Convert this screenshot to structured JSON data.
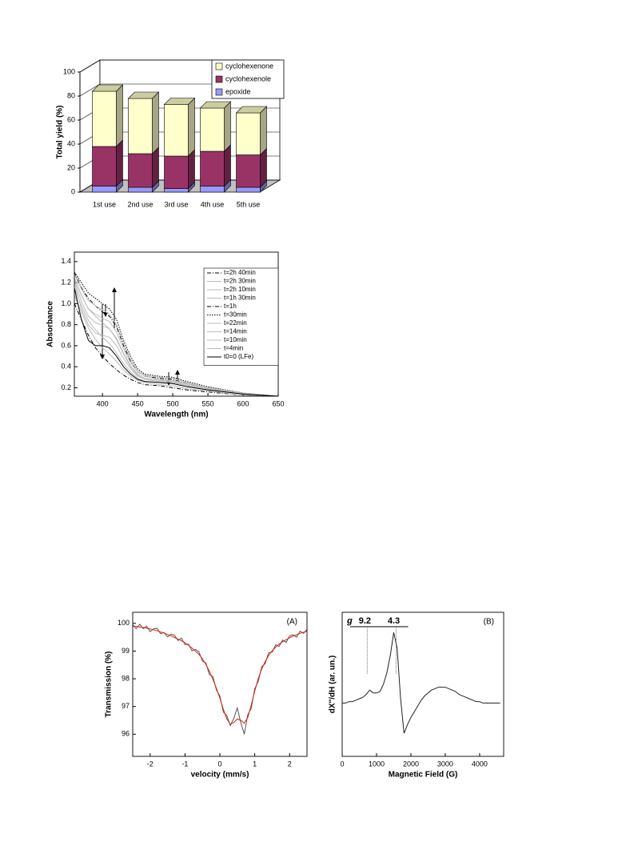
{
  "chart_data": [
    {
      "type": "bar",
      "stacked": true,
      "three_d": true,
      "y_label": "Total yield  (%)",
      "categories": [
        "1st use",
        "2nd use",
        "3rd use",
        "4th use",
        "5th use"
      ],
      "series": [
        {
          "name": "epoxide",
          "color": "#9999ff",
          "values": [
            5,
            4,
            3,
            5,
            4
          ]
        },
        {
          "name": "cyclohexenole",
          "color": "#993366",
          "values": [
            33,
            28,
            27,
            29,
            27
          ]
        },
        {
          "name": "cyclohexenone",
          "color": "#ffffcc",
          "values": [
            46,
            46,
            43,
            36,
            35
          ]
        }
      ],
      "ylim": [
        0,
        100
      ],
      "yticks": [
        0,
        20,
        40,
        60,
        80,
        100
      ],
      "grid": true,
      "legend": "upper right"
    },
    {
      "type": "line",
      "x_label": "Wavelength (nm)",
      "y_label": "Absorbance",
      "x": [
        360,
        370,
        380,
        390,
        400,
        410,
        420,
        430,
        440,
        450,
        460,
        480,
        500,
        520,
        550,
        600,
        650
      ],
      "series": [
        {
          "name": "t=2h 40min",
          "color": "#000000",
          "dash": "dashdot",
          "values": [
            1.0,
            0.85,
            0.7,
            0.58,
            0.5,
            0.43,
            0.37,
            0.32,
            0.28,
            0.25,
            0.23,
            0.22,
            0.2,
            0.18,
            0.16,
            0.13,
            0.11
          ]
        },
        {
          "name": "t=2h 30min",
          "color": "#bbbbbb",
          "dash": "solid",
          "values": [
            1.08,
            0.92,
            0.77,
            0.66,
            0.58,
            0.52,
            0.45,
            0.37,
            0.31,
            0.27,
            0.25,
            0.23,
            0.22,
            0.19,
            0.17,
            0.13,
            0.11
          ]
        },
        {
          "name": "t=2h 10min",
          "color": "#bbbbbb",
          "dash": "solid",
          "values": [
            1.15,
            0.98,
            0.84,
            0.75,
            0.68,
            0.62,
            0.53,
            0.43,
            0.35,
            0.29,
            0.26,
            0.25,
            0.24,
            0.21,
            0.18,
            0.14,
            0.12
          ]
        },
        {
          "name": "t=1h 30min",
          "color": "#bbbbbb",
          "dash": "solid",
          "values": [
            1.25,
            1.08,
            0.95,
            0.88,
            0.82,
            0.76,
            0.66,
            0.52,
            0.4,
            0.32,
            0.29,
            0.27,
            0.26,
            0.22,
            0.19,
            0.14,
            0.12
          ]
        },
        {
          "name": "t=1h",
          "color": "#000000",
          "dash": "dashdot",
          "values": [
            1.3,
            1.15,
            1.05,
            0.98,
            0.92,
            0.88,
            0.78,
            0.6,
            0.45,
            0.35,
            0.31,
            0.29,
            0.28,
            0.24,
            0.2,
            0.15,
            0.12
          ]
        },
        {
          "name": "t=30min",
          "color": "#000000",
          "dash": "dotted",
          "values": [
            1.3,
            1.2,
            1.1,
            1.05,
            1.0,
            0.95,
            0.85,
            0.65,
            0.5,
            0.38,
            0.33,
            0.31,
            0.3,
            0.26,
            0.21,
            0.15,
            0.12
          ]
        },
        {
          "name": "t=22min",
          "color": "#bbbbbb",
          "dash": "solid",
          "values": [
            1.28,
            1.14,
            1.03,
            0.98,
            0.94,
            0.9,
            0.8,
            0.62,
            0.47,
            0.37,
            0.32,
            0.3,
            0.29,
            0.25,
            0.2,
            0.15,
            0.12
          ]
        },
        {
          "name": "t=14min",
          "color": "#bbbbbb",
          "dash": "solid",
          "values": [
            1.25,
            1.08,
            0.95,
            0.9,
            0.86,
            0.83,
            0.73,
            0.57,
            0.44,
            0.35,
            0.31,
            0.28,
            0.27,
            0.24,
            0.2,
            0.15,
            0.12
          ]
        },
        {
          "name": "t=10min",
          "color": "#bbbbbb",
          "dash": "solid",
          "values": [
            1.23,
            1.02,
            0.88,
            0.82,
            0.79,
            0.76,
            0.67,
            0.53,
            0.41,
            0.33,
            0.29,
            0.27,
            0.26,
            0.23,
            0.19,
            0.14,
            0.12
          ]
        },
        {
          "name": "t=4min",
          "color": "#bbbbbb",
          "dash": "solid",
          "values": [
            1.2,
            0.95,
            0.8,
            0.72,
            0.7,
            0.68,
            0.6,
            0.48,
            0.38,
            0.31,
            0.28,
            0.26,
            0.25,
            0.22,
            0.19,
            0.14,
            0.12
          ]
        },
        {
          "name": "t0=0 (LFe)",
          "color": "#000000",
          "dash": "solid",
          "values": [
            1.15,
            0.85,
            0.65,
            0.6,
            0.6,
            0.58,
            0.5,
            0.4,
            0.33,
            0.28,
            0.26,
            0.25,
            0.24,
            0.21,
            0.18,
            0.14,
            0.12
          ]
        }
      ],
      "xlim": [
        360,
        650
      ],
      "xticks": [
        400,
        450,
        500,
        550,
        600,
        650
      ],
      "ylim": [
        0.12,
        1.49
      ],
      "yticks": [
        0.2,
        0.4,
        0.6,
        0.8,
        {
          "value": 1,
          "label": "1.0"
        },
        1.2,
        1.4
      ],
      "legend": "upper right"
    },
    {
      "type": "line",
      "x_label": "velocity (mm/s)",
      "y_label": "Transmission (%)",
      "annotation": "(A)",
      "x": [
        -2.5,
        -2.4,
        -2.3,
        -2.2,
        -2.1,
        -2.0,
        -1.9,
        -1.8,
        -1.7,
        -1.6,
        -1.5,
        -1.4,
        -1.3,
        -1.2,
        -1.1,
        -1.0,
        -0.9,
        -0.8,
        -0.7,
        -0.6,
        -0.5,
        -0.4,
        -0.3,
        -0.2,
        -0.1,
        0.0,
        0.1,
        0.2,
        0.3,
        0.4,
        0.5,
        0.6,
        0.7,
        0.8,
        0.9,
        1.0,
        1.1,
        1.2,
        1.3,
        1.4,
        1.5,
        1.6,
        1.7,
        1.8,
        1.9,
        2.0,
        2.1,
        2.2,
        2.3,
        2.4,
        2.5
      ],
      "series": [
        {
          "color": "#555555",
          "dash": "solid",
          "values": [
            99.95,
            99.81,
            99.97,
            99.81,
            99.9,
            99.7,
            99.8,
            99.82,
            99.63,
            99.67,
            99.51,
            99.61,
            99.57,
            99.38,
            99.47,
            99.23,
            99.25,
            99.01,
            99.06,
            98.97,
            98.64,
            98.57,
            98.15,
            98.08,
            97.6,
            97.38,
            96.8,
            96.67,
            96.31,
            96.57,
            96.95,
            96.42,
            96.0,
            96.7,
            96.93,
            97.64,
            97.9,
            98.43,
            98.55,
            98.94,
            98.96,
            99.23,
            99.17,
            99.4,
            99.31,
            99.55,
            99.59,
            99.5,
            99.72,
            99.64,
            99.78
          ]
        },
        {
          "color": "#e02010",
          "dash": "solid",
          "values": [
            99.9,
            99.89,
            99.87,
            99.85,
            99.83,
            99.8,
            99.77,
            99.73,
            99.69,
            99.65,
            99.6,
            99.55,
            99.49,
            99.43,
            99.37,
            99.3,
            99.21,
            99.11,
            99.0,
            98.88,
            98.72,
            98.52,
            98.27,
            97.98,
            97.66,
            97.3,
            96.9,
            96.55,
            96.36,
            96.42,
            96.55,
            96.5,
            96.4,
            96.6,
            97.05,
            97.55,
            98.0,
            98.35,
            98.62,
            98.84,
            99.01,
            99.14,
            99.25,
            99.34,
            99.41,
            99.48,
            99.54,
            99.59,
            99.64,
            99.68,
            99.72
          ]
        }
      ],
      "xlim": [
        -2.5,
        2.5
      ],
      "xticks": [
        -2,
        -1,
        0,
        1,
        2
      ],
      "ylim": [
        95.2,
        100.4
      ],
      "yticks": [
        96,
        97,
        98,
        99,
        100
      ]
    },
    {
      "type": "line",
      "x_label": "Magnetic Field  (G)",
      "y_label": "dX''/dH  (ar. un.)",
      "annotation": "(B)",
      "g_symbol": "g",
      "markers": [
        {
          "label": "9.2",
          "x": 730
        },
        {
          "label": "4.3",
          "x": 1570
        }
      ],
      "x": [
        0,
        100,
        200,
        300,
        400,
        500,
        600,
        700,
        800,
        900,
        1000,
        1100,
        1200,
        1300,
        1400,
        1500,
        1600,
        1700,
        1800,
        1900,
        2000,
        2100,
        2200,
        2300,
        2400,
        2500,
        2600,
        2700,
        2800,
        2900,
        3000,
        3100,
        3200,
        3300,
        3400,
        3500,
        3600,
        3700,
        3800,
        3900,
        4000,
        4100,
        4200,
        4300,
        4400,
        4500,
        4600
      ],
      "values": [
        37,
        37,
        38,
        38,
        39,
        40,
        41,
        43,
        46,
        44,
        44,
        45,
        50,
        58,
        70,
        86,
        75,
        40,
        16,
        22,
        27,
        31,
        35,
        39,
        42,
        44,
        46,
        47,
        48,
        48,
        48,
        47,
        46,
        45,
        43,
        42,
        41,
        40,
        39,
        38,
        38,
        37,
        37,
        37,
        37,
        37,
        37
      ],
      "color": "#222222",
      "xlim": [
        0,
        4700
      ],
      "xticks": [
        0,
        1000,
        2000,
        3000,
        4000
      ],
      "ylim": [
        0,
        100
      ]
    }
  ]
}
